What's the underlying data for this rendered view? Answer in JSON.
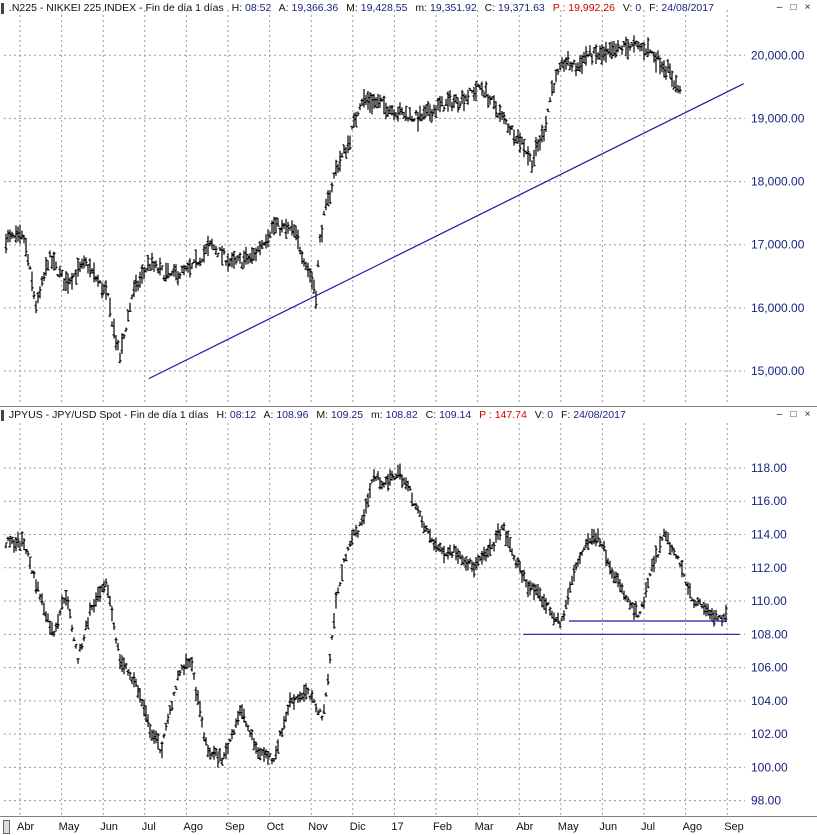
{
  "colors": {
    "price": "#000000",
    "trendline": "#1a1aa8",
    "grid": "#9a9a9a",
    "axis_text": "#1a237e",
    "accent_red": "#d00000"
  },
  "panels": [
    {
      "header": {
        "symbol": ".N225 - NIKKEI 225 INDEX - Fin de día 1 días",
        "h_label": "H:",
        "h_value": "08:52",
        "a_label": "A:",
        "a_value": "19,366.36",
        "m_label": "M:",
        "m_value": "19,428.55",
        "mm_label": "m:",
        "mm_value": "19,351.92",
        "c_label": "C:",
        "c_value": "19,371.63",
        "p_label": "P :",
        "p_value": "19,992.26",
        "v_label": "V:",
        "v_value": "0",
        "f_label": "F:",
        "f_value": "24/08/2017"
      },
      "window_buttons": [
        "–",
        "□",
        "×"
      ]
    },
    {
      "header": {
        "symbol": "JPYUS - JPY/USD Spot - Fin de día 1 días",
        "h_label": "H:",
        "h_value": "08:12",
        "a_label": "A:",
        "a_value": "108.96",
        "m_label": "M:",
        "m_value": "109.25",
        "mm_label": "m:",
        "mm_value": "108.82",
        "c_label": "C:",
        "c_value": "109.14",
        "p_label": "P :",
        "p_value": "147.74",
        "v_label": "V:",
        "v_value": "0",
        "f_label": "F:",
        "f_value": "24/08/2017"
      },
      "window_buttons": [
        "–",
        "□",
        "×"
      ]
    }
  ],
  "chart_data": [
    {
      "type": "line",
      "title": ".N225 - NIKKEI 225 INDEX - Fin de día 1 días",
      "style": "daily OHLC bars",
      "ylim": [
        14700,
        20400
      ],
      "y_ticks": [
        15000,
        16000,
        17000,
        18000,
        19000,
        20000
      ],
      "y_tick_labels": [
        "15,000.00",
        "16,000.00",
        "17,000.00",
        "18,000.00",
        "19,000.00",
        "20,000.00"
      ],
      "grid": true,
      "x_months": [
        "Abr",
        "May",
        "Jun",
        "Jul",
        "Ago",
        "Sep",
        "Oct",
        "Nov",
        "Dic",
        "17",
        "Feb",
        "Mar",
        "Abr",
        "May",
        "Jun",
        "Jul",
        "Ago",
        "Sep"
      ],
      "series": [
        {
          "x": [
            0,
            0.3,
            0.6,
            1.0,
            1.5,
            2.0,
            2.3,
            2.6,
            3.0,
            3.5,
            4.0,
            4.5,
            5.0,
            5.5,
            6.0,
            6.5,
            7.0,
            7.02,
            7.1,
            7.2,
            7.5,
            7.8,
            8.1,
            8.5,
            9.0,
            9.5,
            10.0,
            10.5,
            11.0,
            11.5,
            12.0,
            12.2,
            12.5,
            12.7,
            13.0,
            13.3,
            13.5,
            14.0,
            14.5,
            15.0,
            15.5,
            15.8
          ],
          "values": [
            17100,
            16000,
            16800,
            16400,
            16700,
            16200,
            15200,
            16200,
            16700,
            16500,
            16600,
            17000,
            16700,
            16800,
            17300,
            17200,
            16300,
            16200,
            17000,
            17400,
            18200,
            18600,
            19300,
            19250,
            19100,
            19000,
            19200,
            19300,
            19500,
            19000,
            18600,
            18300,
            18800,
            19500,
            19900,
            19800,
            20000,
            20000,
            20150,
            20100,
            19750,
            19370
          ]
        }
      ],
      "trendline": {
        "x": [
          3.0,
          17.3
        ],
        "y": [
          14880,
          19550
        ]
      }
    },
    {
      "type": "line",
      "title": "JPYUS - JPY/USD Spot - Fin de día 1 días",
      "style": "daily OHLC bars",
      "ylim": [
        97.5,
        119.5
      ],
      "y_ticks": [
        98,
        100,
        102,
        104,
        106,
        108,
        110,
        112,
        114,
        116,
        118
      ],
      "y_tick_labels": [
        "98.00",
        "100.00",
        "102.00",
        "104.00",
        "106.00",
        "108.00",
        "110.00",
        "112.00",
        "114.00",
        "116.00",
        "118.00"
      ],
      "grid": true,
      "x_months": [
        "Abr",
        "May",
        "Jun",
        "Jul",
        "Ago",
        "Sep",
        "Oct",
        "Nov",
        "Dic",
        "17",
        "Feb",
        "Mar",
        "Abr",
        "May",
        "Jun",
        "Jul",
        "Ago",
        "Sep"
      ],
      "series": [
        {
          "x": [
            0,
            0.3,
            0.7,
            1.0,
            1.3,
            1.6,
            2.0,
            2.3,
            2.7,
            3.0,
            3.3,
            3.7,
            4.0,
            4.4,
            4.8,
            5.2,
            5.6,
            6.0,
            6.4,
            6.8,
            7.2,
            7.5,
            7.8,
            8.1,
            8.4,
            8.7,
            9.0,
            9.3,
            9.6,
            10.0,
            10.4,
            10.8,
            11.2,
            11.5,
            11.8,
            12.1,
            12.5,
            12.9,
            13.2,
            13.5,
            13.8,
            14.2,
            14.5,
            14.8,
            15.1,
            15.4,
            15.8,
            16.1,
            16.4,
            16.7,
            16.9
          ],
          "values": [
            113.5,
            111.0,
            108.0,
            110.5,
            106.5,
            109.5,
            111.0,
            106.5,
            105.0,
            102.5,
            101.0,
            105.5,
            106.5,
            101.0,
            100.5,
            103.5,
            101.0,
            100.5,
            104.0,
            104.5,
            103.0,
            110.0,
            113.5,
            114.5,
            117.5,
            117.0,
            117.8,
            116.5,
            114.5,
            113.0,
            113.0,
            112.0,
            113.0,
            114.5,
            112.5,
            111.0,
            110.0,
            108.5,
            111.5,
            113.5,
            114.0,
            111.5,
            110.0,
            109.0,
            112.0,
            114.0,
            112.0,
            110.0,
            109.5,
            108.8,
            109.1
          ]
        }
      ],
      "support_lines": [
        {
          "x": [
            12.0,
            17.2
          ],
          "y": [
            108.0,
            108.0
          ]
        },
        {
          "x": [
            13.1,
            16.9
          ],
          "y": [
            108.8,
            108.8
          ]
        }
      ]
    }
  ],
  "x_axis": {
    "labels": [
      "Abr",
      "May",
      "Jun",
      "Jul",
      "Ago",
      "Sep",
      "Oct",
      "Nov",
      "Dic",
      "17",
      "Feb",
      "Mar",
      "Abr",
      "May",
      "Jun",
      "Jul",
      "Ago",
      "Sep"
    ]
  }
}
